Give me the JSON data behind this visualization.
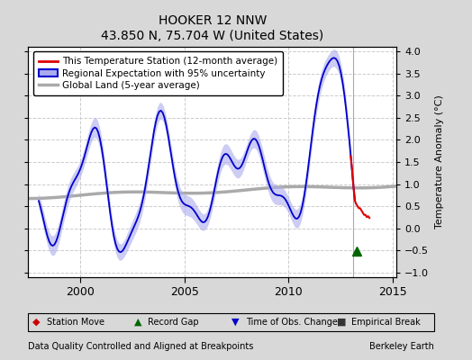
{
  "title": "HOOKER 12 NNW",
  "subtitle": "43.850 N, 75.704 W (United States)",
  "xlabel_bottom": "Data Quality Controlled and Aligned at Breakpoints",
  "xlabel_right": "Berkeley Earth",
  "ylabel": "Temperature Anomaly (°C)",
  "ylim": [
    -1.1,
    4.1
  ],
  "xlim": [
    1997.5,
    2015.2
  ],
  "yticks": [
    -1,
    -0.5,
    0,
    0.5,
    1,
    1.5,
    2,
    2.5,
    3,
    3.5,
    4
  ],
  "xticks": [
    2000,
    2005,
    2010,
    2015
  ],
  "bg_color": "#d8d8d8",
  "plot_bg_color": "#ffffff",
  "legend_entries": [
    "This Temperature Station (12-month average)",
    "Regional Expectation with 95% uncertainty",
    "Global Land (5-year average)"
  ],
  "station_color": "#dd0000",
  "regional_color": "#0000cc",
  "regional_fill_color": "#aaaaee",
  "global_color": "#aaaaaa",
  "grid_color": "#cccccc",
  "marker_colors": {
    "station_move": "#cc0000",
    "record_gap": "#006600",
    "time_obs": "#0000cc",
    "empirical_break": "#333333"
  },
  "record_gap_x": 2013.3,
  "record_gap_y": -0.52,
  "vline_x": 2013.1
}
